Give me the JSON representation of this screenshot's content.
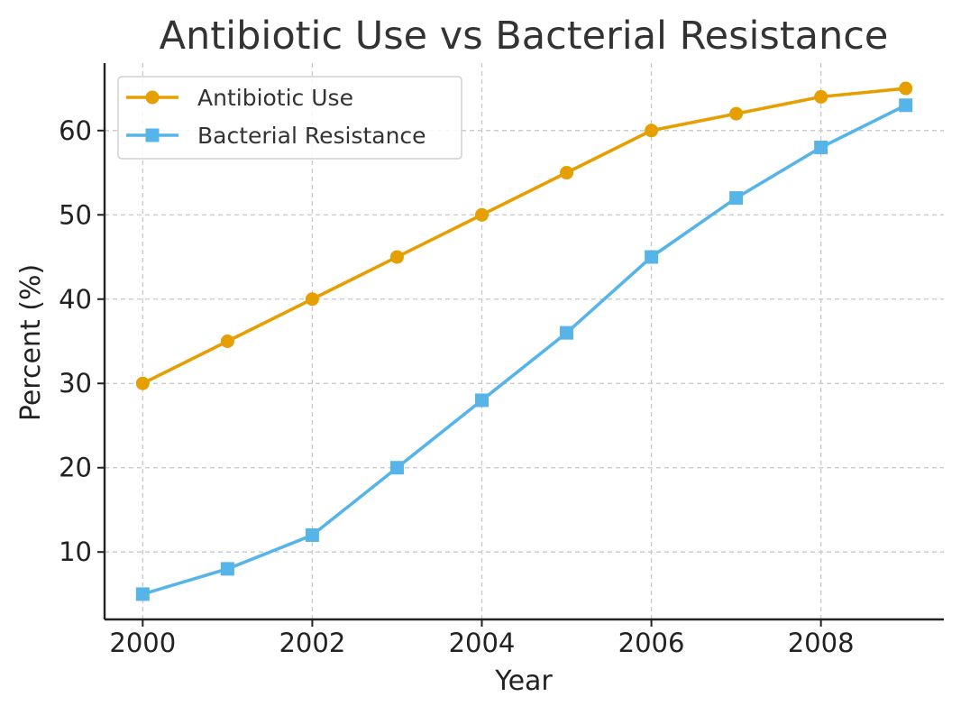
{
  "chart_data": {
    "type": "line",
    "title": "Antibiotic Use vs Bacterial Resistance",
    "xlabel": "Year",
    "ylabel": "Percent (%)",
    "x": [
      2000,
      2001,
      2002,
      2003,
      2004,
      2005,
      2006,
      2007,
      2008,
      2009
    ],
    "xlim": [
      1999.55,
      2009.45
    ],
    "ylim": [
      2,
      68
    ],
    "xticks": [
      2000,
      2002,
      2004,
      2006,
      2008
    ],
    "yticks": [
      10,
      20,
      30,
      40,
      50,
      60
    ],
    "grid": true,
    "legend_position": "top-left",
    "series": [
      {
        "name": "Antibiotic Use",
        "marker": "circle",
        "color": "#E69F00",
        "values": [
          30,
          35,
          40,
          45,
          50,
          55,
          60,
          62,
          64,
          65
        ]
      },
      {
        "name": "Bacterial Resistance",
        "marker": "square",
        "color": "#56B4E9",
        "values": [
          5,
          8,
          12,
          20,
          28,
          36,
          45,
          52,
          58,
          63
        ]
      }
    ]
  }
}
